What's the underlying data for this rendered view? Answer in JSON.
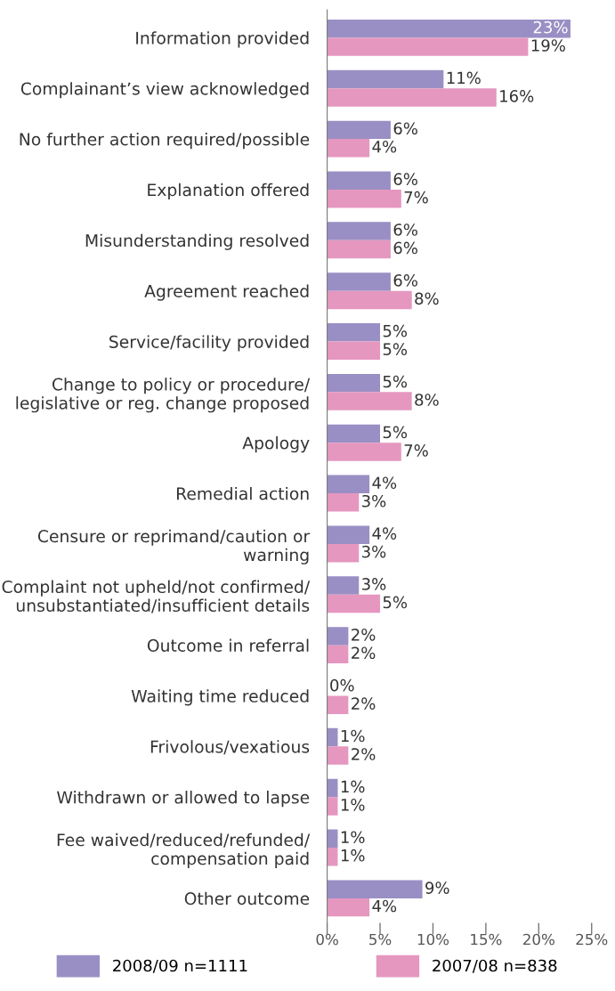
{
  "chart_data": {
    "type": "bar",
    "orientation": "horizontal",
    "categories": [
      "Information provided",
      "Complainant’s view acknowledged",
      "No further action required/possible",
      "Explanation offered",
      "Misunderstanding resolved",
      "Agreement reached",
      "Service/facility provided",
      "Change to policy or procedure/\nlegislative or reg. change proposed",
      "Apology",
      "Remedial action",
      "Censure or reprimand/caution or\nwarning",
      "Complaint not upheld/not confirmed/\nunsubstantiated/insufficient details",
      "Outcome in referral",
      "Waiting time reduced",
      "Frivolous/vexatious",
      "Withdrawn or allowed to lapse",
      "Fee waived/reduced/refunded/\ncompensation paid",
      "Other outcome"
    ],
    "series": [
      {
        "name": "2008/09 n=1111",
        "color": "#9a8fc4",
        "values": [
          23,
          11,
          6,
          6,
          6,
          6,
          5,
          5,
          5,
          4,
          4,
          3,
          2,
          0,
          1,
          1,
          1,
          9
        ],
        "value_labels": [
          "23%",
          "11%",
          "6%",
          "6%",
          "6%",
          "6%",
          "5%",
          "5%",
          "5%",
          "4%",
          "4%",
          "3%",
          "2%",
          "0%",
          "1%",
          "1%",
          "1%",
          "9%"
        ]
      },
      {
        "name": "2007/08 n=838",
        "color": "#e597c0",
        "values": [
          19,
          16,
          4,
          7,
          6,
          8,
          5,
          8,
          7,
          3,
          3,
          5,
          2,
          2,
          2,
          1,
          1,
          4
        ],
        "value_labels": [
          "19%",
          "16%",
          "4%",
          "7%",
          "6%",
          "8%",
          "5%",
          "8%",
          "7%",
          "3%",
          "3%",
          "5%",
          "2%",
          "2%",
          "2%",
          "1%",
          "1%",
          "4%"
        ]
      }
    ],
    "xlim": [
      0,
      25
    ],
    "xticks": [
      {
        "value": 0,
        "label": "0%"
      },
      {
        "value": 5,
        "label": "5%"
      },
      {
        "value": 10,
        "label": "10%"
      },
      {
        "value": 15,
        "label": "15%"
      },
      {
        "value": 20,
        "label": "20%"
      },
      {
        "value": 25,
        "label": "25%"
      }
    ],
    "grid": false,
    "legend": "bottom"
  }
}
